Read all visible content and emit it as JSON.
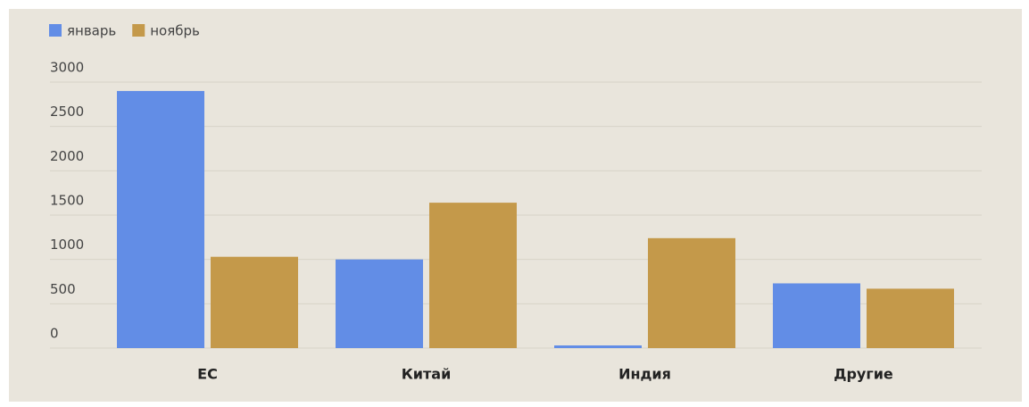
{
  "chart_data": {
    "type": "bar",
    "categories": [
      "ЕС",
      "Китай",
      "Индия",
      "Другие"
    ],
    "series": [
      {
        "name": "январь",
        "color": "#628de6",
        "values": [
          2900,
          1000,
          30,
          730
        ]
      },
      {
        "name": "ноябрь",
        "color": "#c4994a",
        "values": [
          1030,
          1640,
          1240,
          670
        ]
      }
    ],
    "ylim": [
      0,
      3000
    ],
    "yticks": [
      0,
      500,
      1000,
      1500,
      2000,
      2500,
      3000
    ],
    "grid": true,
    "legend": "top-left"
  }
}
